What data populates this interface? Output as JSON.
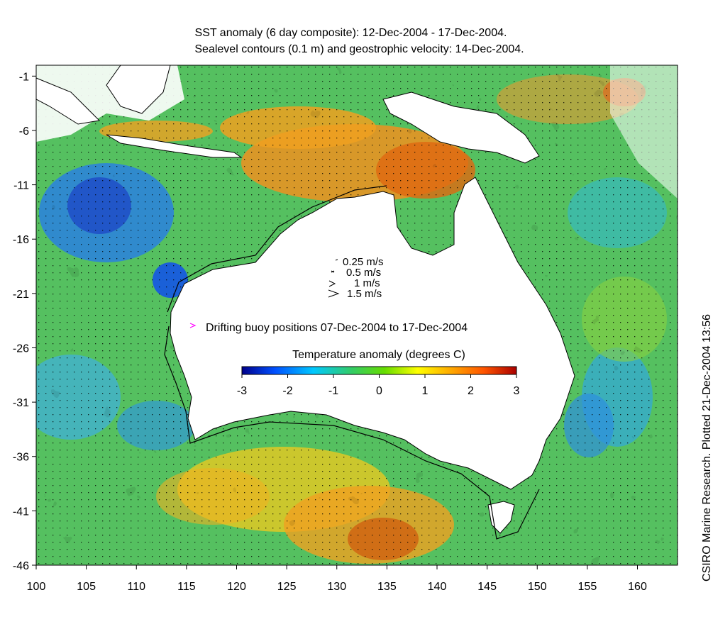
{
  "titles": {
    "line1": "SST anomaly (6 day composite): 12-Dec-2004 - 17-Dec-2004.",
    "line2": "Sealevel contours (0.1 m) and geostrophic velocity: 14-Dec-2004."
  },
  "credit": "CSIRO Marine Research. Plotted 21-Dec-2004 13:56",
  "axes": {
    "x_ticks": [
      "100",
      "105",
      "110",
      "115",
      "120",
      "125",
      "130",
      "135",
      "140",
      "145",
      "150",
      "155",
      "160"
    ],
    "y_ticks": [
      "-1",
      "-6",
      "-11",
      "-16",
      "-21",
      "-26",
      "-31",
      "-36",
      "-41",
      "-46"
    ],
    "lon_range": [
      100,
      164
    ],
    "lat_range": [
      -46,
      0
    ]
  },
  "velocity_legend": {
    "items": [
      "0.25 m/s",
      "0.5 m/s",
      "1 m/s",
      "1.5 m/s"
    ]
  },
  "buoy_legend": "Drifting buoy positions 07-Dec-2004 to 17-Dec-2004",
  "colorbar": {
    "title": "Temperature anomaly (degrees C)",
    "ticks": [
      "-3",
      "-2",
      "-1",
      "0",
      "1",
      "2",
      "3"
    ],
    "range": [
      -3,
      3
    ],
    "colors": [
      "#00008b",
      "#0050ff",
      "#00c8ff",
      "#33cc66",
      "#66dd00",
      "#ffff00",
      "#ffaa00",
      "#ff5500",
      "#aa0000"
    ]
  },
  "colors": {
    "land": "#ffffff",
    "ocean_mid": "#55c060",
    "buoy": "#ff00ff"
  }
}
